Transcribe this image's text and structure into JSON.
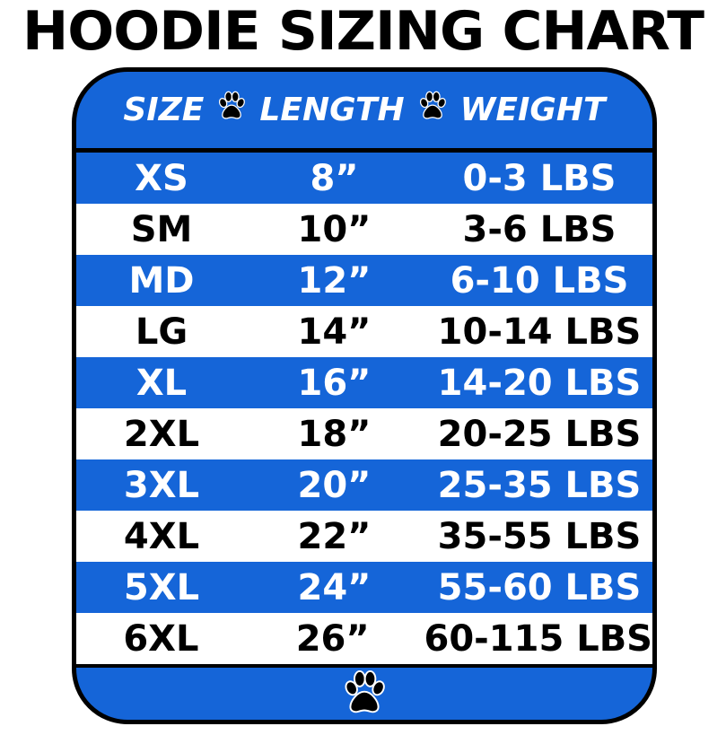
{
  "title": "HOODIE SIZING CHART",
  "colors": {
    "blue": "#1565d8",
    "white": "#ffffff",
    "border": "#000000"
  },
  "chart_data": {
    "type": "table",
    "title": "HOODIE SIZING CHART",
    "columns": [
      "SIZE",
      "LENGTH",
      "WEIGHT"
    ],
    "rows": [
      [
        "XS",
        "8”",
        "0-3 LBS"
      ],
      [
        "SM",
        "10”",
        "3-6 LBS"
      ],
      [
        "MD",
        "12”",
        "6-10 LBS"
      ],
      [
        "LG",
        "14”",
        "10-14 LBS"
      ],
      [
        "XL",
        "16”",
        "14-20 LBS"
      ],
      [
        "2XL",
        "18”",
        "20-25 LBS"
      ],
      [
        "3XL",
        "20”",
        "25-35 LBS"
      ],
      [
        "4XL",
        "22”",
        "35-55 LBS"
      ],
      [
        "5XL",
        "24”",
        "55-60 LBS"
      ],
      [
        "6XL",
        "26”",
        "60-115 LBS"
      ]
    ]
  },
  "icons": {
    "separator": "paw-print-icon",
    "footer": "paw-print-icon"
  }
}
